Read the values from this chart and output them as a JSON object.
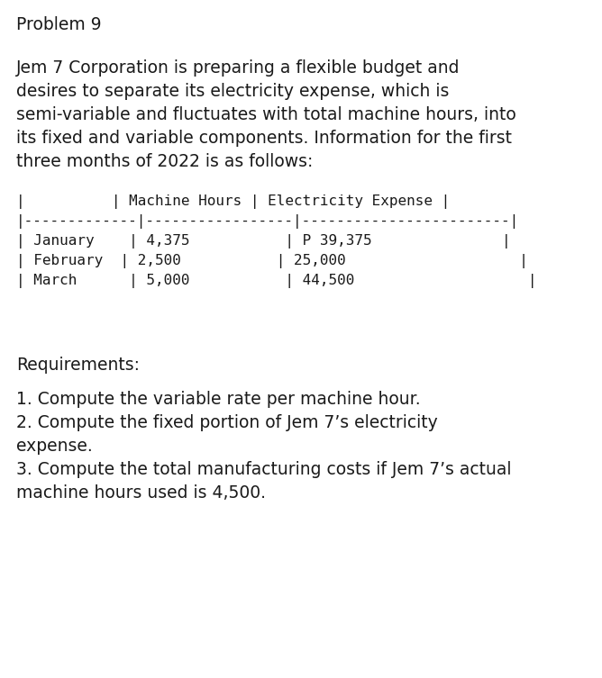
{
  "title": "Problem 9",
  "paragraph_lines": [
    "Jem 7 Corporation is preparing a flexible budget and",
    "desires to separate its electricity expense, which is",
    "semi-variable and fluctuates with total machine hours, into",
    "its fixed and variable components. Information for the first",
    "three months of 2022 is as follows:"
  ],
  "table_header": "|          | Machine Hours | Electricity Expense |",
  "table_separator": "|-------------|-----------------|------------------------|",
  "table_row1": "| January    | 4,375           | P 39,375               |",
  "table_row2": "| February  | 2,500           | 25,000                    |",
  "table_row3": "| March      | 5,000           | 44,500                    |",
  "requirements_label": "Requirements:",
  "req1": "1. Compute the variable rate per machine hour.",
  "req2a": "2. Compute the fixed portion of Jem 7’s electricity",
  "req2b": "expense.",
  "req3a": "3. Compute the total manufacturing costs if Jem 7’s actual",
  "req3b": "machine hours used is 4,500.",
  "bg_color": "#ffffff",
  "text_color": "#1a1a1a",
  "body_font_size": 13.5,
  "mono_font_size": 11.5
}
